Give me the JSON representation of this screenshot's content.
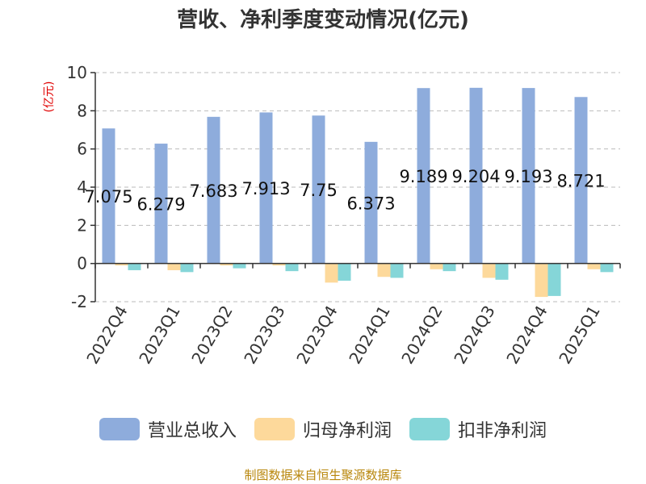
{
  "title": "营收、净利季度变动情况(亿元)",
  "source": "制图数据来自恒生聚源数据库",
  "chart_data": {
    "type": "bar",
    "title": "营收、净利季度变动情况(亿元)",
    "ylabel": "(亿元)",
    "ylim": [
      -2,
      10
    ],
    "yticks": [
      "-2",
      "0",
      "2",
      "4",
      "6",
      "8",
      "10"
    ],
    "grid": true,
    "legend_position": "bottom",
    "categories": [
      "2022Q4",
      "2023Q1",
      "2023Q2",
      "2023Q3",
      "2023Q4",
      "2024Q1",
      "2024Q2",
      "2024Q3",
      "2024Q4",
      "2025Q1"
    ],
    "series": [
      {
        "name": "营业总收入",
        "color": "#8eacdc",
        "values": [
          7.075,
          6.279,
          7.683,
          7.913,
          7.75,
          6.373,
          9.189,
          9.204,
          9.193,
          8.721
        ],
        "labels": [
          "7.075",
          "6.279",
          "7.683",
          "7.913",
          "7.75",
          "6.373",
          "9.189",
          "9.204",
          "9.193",
          "8.721"
        ]
      },
      {
        "name": "归母净利润",
        "color": "#fdd99b",
        "values": [
          -0.1,
          -0.35,
          -0.1,
          -0.1,
          -1.0,
          -0.7,
          -0.3,
          -0.75,
          -1.75,
          -0.3
        ]
      },
      {
        "name": "扣非净利润",
        "color": "#85d6d8",
        "values": [
          -0.35,
          -0.45,
          -0.25,
          -0.4,
          -0.9,
          -0.75,
          -0.4,
          -0.85,
          -1.7,
          -0.45
        ]
      }
    ]
  }
}
